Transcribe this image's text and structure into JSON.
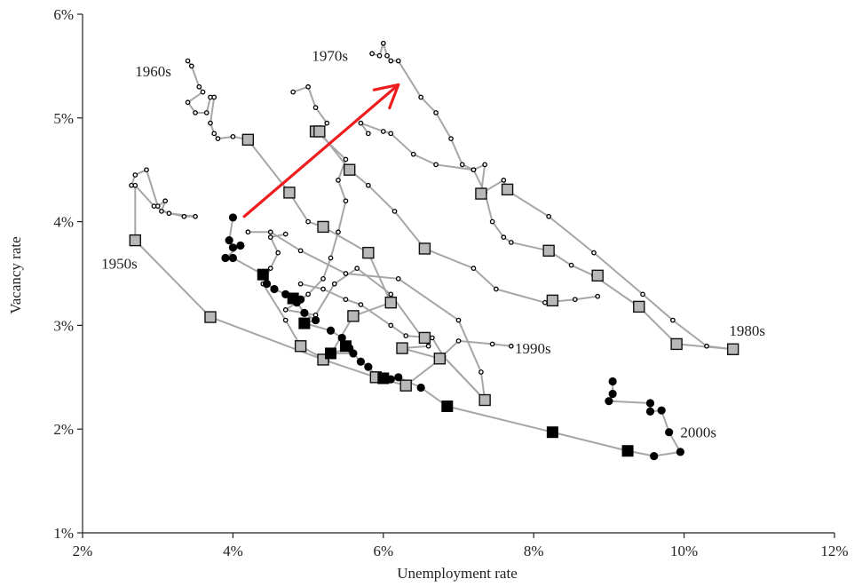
{
  "chart_data": {
    "type": "scatter",
    "xlabel": "Unemployment rate",
    "ylabel": "Vacancy rate",
    "xlim": [
      2,
      12
    ],
    "ylim": [
      1,
      6
    ],
    "xticks": [
      2,
      4,
      6,
      8,
      10,
      12
    ],
    "yticks": [
      1,
      2,
      3,
      4,
      5,
      6
    ],
    "tick_format": "%",
    "colors": {
      "line": "#a6a6a6",
      "hollow_marker": "#000000",
      "gray_square": "#b8b8b8",
      "black_marker": "#000000",
      "arrow": "#ee1c1c"
    },
    "decade_labels": [
      {
        "text": "1950s",
        "x": 2.25,
        "y": 3.6
      },
      {
        "text": "1960s",
        "x": 2.7,
        "y": 5.45
      },
      {
        "text": "1970s",
        "x": 5.05,
        "y": 5.6
      },
      {
        "text": "1980s",
        "x": 10.6,
        "y": 2.95
      },
      {
        "text": "1990s",
        "x": 7.75,
        "y": 2.78
      },
      {
        "text": "2000s",
        "x": 9.95,
        "y": 1.97
      }
    ],
    "series": [
      {
        "style": "gray",
        "points": [
          [
            2.65,
            4.35
          ],
          [
            2.7,
            4.45
          ],
          [
            2.85,
            4.5
          ],
          [
            3.0,
            4.15
          ],
          [
            3.1,
            4.2
          ],
          [
            3.05,
            4.1
          ],
          [
            3.35,
            4.05
          ],
          [
            3.5,
            4.05
          ],
          [
            3.15,
            4.08
          ],
          [
            2.95,
            4.15
          ],
          [
            2.7,
            4.35
          ],
          [
            2.7,
            3.82
          ],
          [
            3.7,
            3.08
          ],
          [
            5.2,
            2.67
          ],
          [
            5.9,
            2.5
          ],
          [
            6.3,
            2.42
          ],
          [
            6.8,
            2.7
          ],
          [
            7.35,
            2.28
          ],
          [
            7.3,
            2.55
          ],
          [
            7.0,
            3.05
          ],
          [
            6.2,
            3.45
          ],
          [
            5.5,
            3.5
          ],
          [
            4.9,
            3.72
          ],
          [
            4.5,
            3.9
          ],
          [
            4.2,
            3.9
          ]
        ]
      },
      {
        "style": "gray",
        "points": [
          [
            3.4,
            5.55
          ],
          [
            3.45,
            5.5
          ],
          [
            3.55,
            5.3
          ],
          [
            3.6,
            5.25
          ],
          [
            3.4,
            5.15
          ],
          [
            3.5,
            5.05
          ],
          [
            3.65,
            5.05
          ],
          [
            3.7,
            5.2
          ],
          [
            3.75,
            5.2
          ],
          [
            3.7,
            4.95
          ],
          [
            3.75,
            4.85
          ],
          [
            3.8,
            4.8
          ],
          [
            4.0,
            4.82
          ],
          [
            4.2,
            4.79
          ],
          [
            4.75,
            4.28
          ],
          [
            5.0,
            4.0
          ],
          [
            5.2,
            3.95
          ],
          [
            5.8,
            3.7
          ],
          [
            6.1,
            3.22
          ],
          [
            5.6,
            3.09
          ],
          [
            5.25,
            2.66
          ],
          [
            4.9,
            2.8
          ],
          [
            4.7,
            3.05
          ],
          [
            4.4,
            3.4
          ],
          [
            4.5,
            3.55
          ],
          [
            4.6,
            3.7
          ],
          [
            4.5,
            3.85
          ],
          [
            4.7,
            3.88
          ]
        ]
      },
      {
        "style": "gray",
        "points": [
          [
            4.8,
            5.25
          ],
          [
            5.0,
            5.3
          ],
          [
            5.1,
            5.1
          ],
          [
            5.25,
            4.95
          ],
          [
            5.15,
            4.85
          ],
          [
            5.1,
            4.88
          ],
          [
            5.5,
            4.6
          ],
          [
            5.4,
            4.4
          ],
          [
            5.5,
            4.2
          ],
          [
            5.4,
            3.9
          ],
          [
            5.3,
            3.65
          ],
          [
            5.2,
            3.45
          ],
          [
            5.0,
            3.3
          ],
          [
            4.85,
            3.22
          ],
          [
            4.7,
            3.15
          ],
          [
            5.1,
            3.1
          ],
          [
            5.35,
            3.4
          ],
          [
            5.65,
            3.55
          ],
          [
            6.1,
            3.3
          ],
          [
            6.6,
            2.8
          ],
          [
            6.25,
            2.78
          ],
          [
            6.75,
            2.68
          ],
          [
            7.0,
            2.85
          ],
          [
            7.45,
            2.82
          ],
          [
            7.7,
            2.8
          ]
        ]
      },
      {
        "style": "gray",
        "points": [
          [
            5.15,
            4.87
          ],
          [
            5.55,
            4.5
          ],
          [
            5.8,
            4.35
          ],
          [
            6.15,
            4.1
          ],
          [
            6.55,
            3.74
          ],
          [
            7.2,
            3.55
          ],
          [
            7.5,
            3.35
          ],
          [
            8.15,
            3.22
          ],
          [
            8.55,
            3.25
          ],
          [
            8.85,
            3.28
          ]
        ]
      },
      {
        "style": "gray",
        "points": [
          [
            5.85,
            5.62
          ],
          [
            5.95,
            5.6
          ],
          [
            6.0,
            5.72
          ],
          [
            6.05,
            5.6
          ],
          [
            6.1,
            5.55
          ],
          [
            6.2,
            5.55
          ],
          [
            6.5,
            5.2
          ],
          [
            6.7,
            5.05
          ],
          [
            6.9,
            4.8
          ],
          [
            7.05,
            4.55
          ],
          [
            7.2,
            4.5
          ],
          [
            7.35,
            4.55
          ],
          [
            7.3,
            4.27
          ],
          [
            7.6,
            4.4
          ],
          [
            7.65,
            4.3
          ],
          [
            8.2,
            4.05
          ],
          [
            8.8,
            3.7
          ],
          [
            9.45,
            3.3
          ],
          [
            9.85,
            3.05
          ],
          [
            10.3,
            2.8
          ],
          [
            10.65,
            2.77
          ]
        ]
      },
      {
        "style": "gray",
        "points": [
          [
            5.8,
            4.85
          ],
          [
            5.7,
            4.95
          ],
          [
            6.0,
            4.87
          ],
          [
            6.1,
            4.85
          ],
          [
            6.4,
            4.65
          ],
          [
            6.7,
            4.55
          ],
          [
            7.2,
            4.5
          ],
          [
            7.35,
            4.28
          ],
          [
            7.45,
            4.0
          ],
          [
            7.6,
            3.85
          ],
          [
            7.7,
            3.8
          ],
          [
            8.2,
            3.72
          ],
          [
            8.5,
            3.58
          ],
          [
            8.8,
            3.48
          ],
          [
            9.4,
            3.18
          ],
          [
            9.9,
            2.82
          ],
          [
            10.65,
            2.77
          ]
        ]
      },
      {
        "style": "gray",
        "points": [
          [
            4.9,
            3.4
          ],
          [
            5.2,
            3.35
          ],
          [
            5.5,
            3.25
          ],
          [
            5.7,
            3.2
          ],
          [
            6.1,
            3.0
          ],
          [
            6.3,
            2.9
          ],
          [
            6.65,
            2.88
          ],
          [
            6.8,
            2.7
          ],
          [
            7.35,
            2.28
          ]
        ]
      },
      {
        "style": "black",
        "points": [
          [
            4.0,
            4.04
          ],
          [
            3.95,
            3.82
          ],
          [
            4.0,
            3.75
          ],
          [
            4.1,
            3.77
          ],
          [
            3.9,
            3.65
          ],
          [
            4.0,
            3.65
          ],
          [
            4.4,
            3.49
          ],
          [
            4.45,
            3.4
          ],
          [
            4.55,
            3.35
          ],
          [
            4.7,
            3.3
          ],
          [
            4.8,
            3.25
          ],
          [
            4.9,
            3.25
          ],
          [
            4.85,
            3.22
          ],
          [
            4.95,
            3.12
          ],
          [
            5.1,
            3.05
          ],
          [
            4.95,
            3.02
          ],
          [
            5.3,
            2.95
          ],
          [
            5.45,
            2.88
          ],
          [
            5.55,
            2.78
          ],
          [
            5.3,
            2.73
          ],
          [
            5.6,
            2.73
          ],
          [
            5.7,
            2.65
          ],
          [
            5.8,
            2.6
          ],
          [
            5.9,
            2.52
          ],
          [
            6.1,
            2.48
          ],
          [
            6.2,
            2.5
          ],
          [
            6.5,
            2.4
          ],
          [
            6.85,
            2.22
          ],
          [
            8.25,
            1.97
          ],
          [
            9.25,
            1.79
          ],
          [
            9.6,
            1.74
          ],
          [
            9.95,
            1.78
          ],
          [
            9.8,
            1.97
          ],
          [
            9.7,
            2.18
          ],
          [
            9.55,
            2.17
          ],
          [
            9.55,
            2.25
          ],
          [
            9.0,
            2.27
          ],
          [
            9.05,
            2.34
          ],
          [
            9.05,
            2.46
          ]
        ]
      }
    ],
    "gray_squares": [
      [
        2.7,
        3.82
      ],
      [
        3.7,
        3.08
      ],
      [
        4.2,
        4.79
      ],
      [
        4.75,
        4.28
      ],
      [
        5.1,
        4.87
      ],
      [
        5.15,
        4.87
      ],
      [
        5.2,
        3.95
      ],
      [
        5.55,
        4.5
      ],
      [
        5.8,
        3.7
      ],
      [
        5.6,
        3.09
      ],
      [
        6.1,
        3.22
      ],
      [
        6.55,
        3.74
      ],
      [
        6.25,
        2.78
      ],
      [
        6.55,
        2.88
      ],
      [
        6.75,
        2.68
      ],
      [
        5.2,
        2.67
      ],
      [
        4.9,
        2.8
      ],
      [
        5.9,
        2.5
      ],
      [
        6.3,
        2.42
      ],
      [
        7.35,
        2.28
      ],
      [
        7.3,
        4.27
      ],
      [
        7.65,
        4.31
      ],
      [
        8.2,
        3.72
      ],
      [
        8.85,
        3.48
      ],
      [
        8.25,
        3.24
      ],
      [
        9.4,
        3.18
      ],
      [
        9.9,
        2.82
      ],
      [
        10.65,
        2.77
      ]
    ],
    "black_squares": [
      [
        4.4,
        3.49
      ],
      [
        4.8,
        3.26
      ],
      [
        4.95,
        3.02
      ],
      [
        5.3,
        2.73
      ],
      [
        5.5,
        2.8
      ],
      [
        6.0,
        2.49
      ],
      [
        6.85,
        2.22
      ],
      [
        8.25,
        1.97
      ],
      [
        9.25,
        1.79
      ]
    ],
    "red_arrow": {
      "from": [
        4.15,
        4.05
      ],
      "to": [
        6.2,
        5.32
      ]
    }
  }
}
